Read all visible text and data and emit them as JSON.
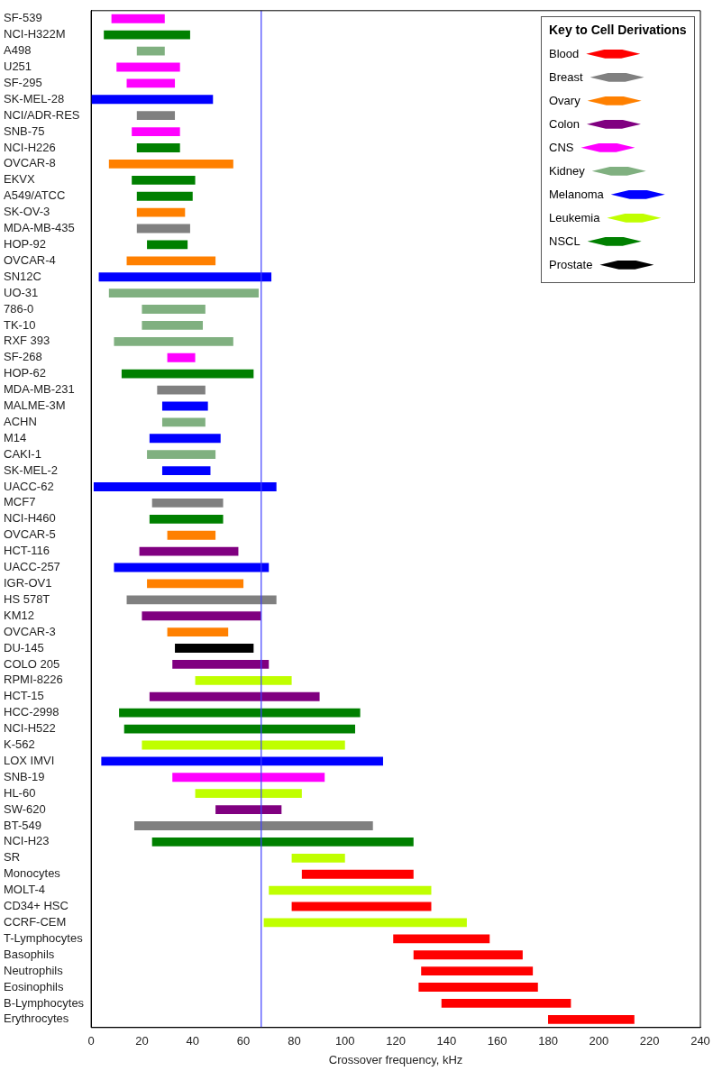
{
  "chart_data": {
    "type": "bar",
    "orientation": "horizontal",
    "xlabel": "Crossover frequency, kHz",
    "legend_title": "Key to Cell Derivations",
    "legend": "top right",
    "grid": false,
    "categories": [
      "SF-539",
      "NCI-H322M",
      "A498",
      "U251",
      "SF-295",
      "SK-MEL-28",
      "NCI/ADR-RES",
      "SNB-75",
      "NCI-H226",
      "OVCAR-8",
      "EKVX",
      "A549/ATCC",
      "SK-OV-3",
      "MDA-MB-435",
      "HOP-92",
      "OVCAR-4",
      "SN12C",
      "UO-31",
      "786-0",
      "TK-10",
      "RXF 393",
      "SF-268",
      "HOP-62",
      "MDA-MB-231",
      "MALME-3M",
      "ACHN",
      "M14",
      "CAKI-1",
      "SK-MEL-2",
      "UACC-62",
      "MCF7",
      "NCI-H460",
      "OVCAR-5",
      "HCT-116",
      "UACC-257",
      "IGR-OV1",
      "HS 578T",
      "KM12",
      "OVCAR-3",
      "DU-145",
      "COLO 205",
      "RPMI-8226",
      "HCT-15",
      "HCC-2998",
      "NCI-H522",
      "K-562",
      "LOX IMVI",
      "SNB-19",
      "HL-60",
      "SW-620",
      "BT-549",
      "NCI-H23",
      "SR",
      "Monocytes",
      "MOLT-4",
      "CD34+ HSC",
      "CCRF-CEM",
      "T-Lymphocytes",
      "Basophils",
      "Neutrophils",
      "Eosinophils",
      "B-Lymphocytes",
      "Erythrocytes"
    ],
    "xlim": [
      0,
      240
    ],
    "xticks": [
      0,
      20,
      40,
      60,
      80,
      100,
      120,
      140,
      160,
      180,
      200,
      220,
      240
    ],
    "ref_lines": [
      {
        "axis": "x",
        "value": 67,
        "color": "#4040ff"
      }
    ],
    "series": [
      {
        "name": "Blood",
        "color": "#ff0000",
        "values": [
          null,
          null,
          null,
          null,
          null,
          null,
          null,
          null,
          null,
          null,
          null,
          null,
          null,
          null,
          null,
          null,
          null,
          null,
          null,
          null,
          null,
          null,
          null,
          null,
          null,
          null,
          null,
          null,
          null,
          null,
          null,
          null,
          null,
          null,
          null,
          null,
          null,
          null,
          null,
          null,
          null,
          null,
          null,
          null,
          null,
          null,
          null,
          null,
          null,
          null,
          null,
          null,
          null,
          44,
          null,
          55,
          null,
          38,
          43,
          44,
          47,
          51,
          34
        ],
        "base": [
          null,
          null,
          null,
          null,
          null,
          null,
          null,
          null,
          null,
          null,
          null,
          null,
          null,
          null,
          null,
          null,
          null,
          null,
          null,
          null,
          null,
          null,
          null,
          null,
          null,
          null,
          null,
          null,
          null,
          null,
          null,
          null,
          null,
          null,
          null,
          null,
          null,
          null,
          null,
          null,
          null,
          null,
          null,
          null,
          null,
          null,
          null,
          null,
          null,
          null,
          null,
          null,
          null,
          83,
          null,
          79,
          null,
          119,
          127,
          130,
          129,
          138,
          180
        ]
      },
      {
        "name": "Breast",
        "color": "#808080",
        "values": [
          null,
          null,
          null,
          null,
          null,
          null,
          15,
          null,
          null,
          null,
          null,
          null,
          null,
          21,
          null,
          null,
          null,
          null,
          null,
          null,
          null,
          null,
          null,
          19,
          null,
          null,
          null,
          null,
          null,
          null,
          28,
          null,
          null,
          null,
          null,
          null,
          59,
          null,
          null,
          null,
          null,
          null,
          null,
          null,
          null,
          null,
          null,
          null,
          null,
          null,
          94,
          null,
          null,
          null,
          null,
          null,
          null,
          null,
          null,
          null,
          null,
          null,
          null
        ],
        "base": [
          null,
          null,
          null,
          null,
          null,
          null,
          18,
          null,
          null,
          null,
          null,
          null,
          null,
          18,
          null,
          null,
          null,
          null,
          null,
          null,
          null,
          null,
          null,
          26,
          null,
          null,
          null,
          null,
          null,
          null,
          24,
          null,
          null,
          null,
          null,
          null,
          14,
          null,
          null,
          null,
          null,
          null,
          null,
          null,
          null,
          null,
          null,
          null,
          null,
          null,
          17,
          null,
          null,
          null,
          null,
          null,
          null,
          null,
          null,
          null,
          null,
          null,
          null
        ]
      },
      {
        "name": "Ovary",
        "color": "#ff8000",
        "values": [
          null,
          null,
          null,
          null,
          null,
          null,
          null,
          null,
          null,
          49,
          null,
          null,
          19,
          null,
          null,
          35,
          null,
          null,
          null,
          null,
          null,
          null,
          null,
          null,
          null,
          null,
          null,
          null,
          null,
          null,
          null,
          null,
          19,
          null,
          null,
          38,
          null,
          null,
          24,
          null,
          null,
          null,
          null,
          null,
          null,
          null,
          null,
          null,
          null,
          null,
          null,
          null,
          null,
          null,
          null,
          null,
          null,
          null,
          null,
          null,
          null,
          null,
          null
        ],
        "base": [
          null,
          null,
          null,
          null,
          null,
          null,
          null,
          null,
          null,
          7,
          null,
          null,
          18,
          null,
          null,
          14,
          null,
          null,
          null,
          null,
          null,
          null,
          null,
          null,
          null,
          null,
          null,
          null,
          null,
          null,
          null,
          null,
          30,
          null,
          null,
          22,
          null,
          null,
          30,
          null,
          null,
          null,
          null,
          null,
          null,
          null,
          null,
          null,
          null,
          null,
          null,
          null,
          null,
          null,
          null,
          null,
          null,
          null,
          null,
          null,
          null,
          null,
          null
        ]
      },
      {
        "name": "Colon",
        "color": "#800080",
        "values": [
          null,
          null,
          null,
          null,
          null,
          null,
          null,
          null,
          null,
          null,
          null,
          null,
          null,
          null,
          null,
          null,
          null,
          null,
          null,
          null,
          null,
          null,
          null,
          null,
          null,
          null,
          null,
          null,
          null,
          null,
          null,
          null,
          null,
          39,
          null,
          null,
          null,
          47,
          null,
          null,
          38,
          null,
          67,
          null,
          null,
          null,
          null,
          null,
          null,
          26,
          null,
          null,
          null,
          null,
          null,
          null,
          null,
          null,
          null,
          null,
          null,
          null,
          null
        ],
        "base": [
          null,
          null,
          null,
          null,
          null,
          null,
          null,
          null,
          null,
          null,
          null,
          null,
          null,
          null,
          null,
          null,
          null,
          null,
          null,
          null,
          null,
          null,
          null,
          null,
          null,
          null,
          null,
          null,
          null,
          null,
          null,
          null,
          null,
          19,
          null,
          null,
          null,
          20,
          null,
          null,
          32,
          null,
          23,
          null,
          null,
          null,
          null,
          null,
          null,
          49,
          null,
          null,
          null,
          null,
          null,
          null,
          null,
          null,
          null,
          null,
          null,
          null,
          null
        ]
      },
      {
        "name": "CNS",
        "color": "#ff00ff",
        "values": [
          21,
          null,
          null,
          25,
          19,
          null,
          null,
          19,
          null,
          null,
          null,
          null,
          null,
          null,
          null,
          null,
          null,
          null,
          null,
          null,
          null,
          11,
          null,
          null,
          null,
          null,
          null,
          null,
          null,
          null,
          null,
          null,
          null,
          null,
          null,
          null,
          null,
          null,
          null,
          null,
          null,
          null,
          null,
          null,
          null,
          null,
          null,
          60,
          null,
          null,
          null,
          null,
          null,
          null,
          null,
          null,
          null,
          null,
          null,
          null,
          null,
          null,
          null
        ],
        "base": [
          8,
          null,
          null,
          10,
          14,
          null,
          null,
          16,
          null,
          null,
          null,
          null,
          null,
          null,
          null,
          null,
          null,
          null,
          null,
          null,
          null,
          30,
          null,
          null,
          null,
          null,
          null,
          null,
          null,
          null,
          null,
          null,
          null,
          null,
          null,
          null,
          null,
          null,
          null,
          null,
          null,
          null,
          null,
          null,
          null,
          null,
          null,
          32,
          null,
          null,
          null,
          null,
          null,
          null,
          null,
          null,
          null,
          null,
          null,
          null,
          null,
          null,
          null
        ]
      },
      {
        "name": "Kidney",
        "color": "#80b080",
        "values": [
          null,
          null,
          11,
          null,
          null,
          null,
          null,
          null,
          null,
          null,
          null,
          null,
          null,
          null,
          null,
          null,
          null,
          59,
          25,
          24,
          47,
          null,
          null,
          null,
          null,
          17,
          null,
          27,
          null,
          null,
          null,
          null,
          null,
          null,
          null,
          null,
          null,
          null,
          null,
          null,
          null,
          null,
          null,
          null,
          null,
          null,
          null,
          null,
          null,
          null,
          null,
          null,
          null,
          null,
          null,
          null,
          null,
          null,
          null,
          null,
          null,
          null,
          null
        ],
        "base": [
          null,
          null,
          18,
          null,
          null,
          null,
          null,
          null,
          null,
          null,
          null,
          null,
          null,
          null,
          null,
          null,
          null,
          7,
          20,
          20,
          9,
          null,
          null,
          null,
          null,
          28,
          null,
          22,
          null,
          null,
          null,
          null,
          null,
          null,
          null,
          null,
          null,
          null,
          null,
          null,
          null,
          null,
          null,
          null,
          null,
          null,
          null,
          null,
          null,
          null,
          null,
          null,
          null,
          null,
          null,
          null,
          null,
          null,
          null,
          null,
          null,
          null,
          null
        ]
      },
      {
        "name": "Melanoma",
        "color": "#0000ff",
        "values": [
          null,
          null,
          null,
          null,
          null,
          48,
          null,
          null,
          null,
          null,
          null,
          null,
          null,
          null,
          null,
          null,
          68,
          null,
          null,
          null,
          null,
          null,
          null,
          null,
          18,
          null,
          28,
          null,
          19,
          72,
          null,
          null,
          null,
          null,
          61,
          null,
          null,
          null,
          null,
          null,
          null,
          null,
          null,
          null,
          null,
          null,
          111,
          null,
          null,
          null,
          null,
          null,
          null,
          null,
          null,
          null,
          null,
          null,
          null,
          null,
          null,
          null,
          null
        ],
        "base": [
          null,
          null,
          null,
          null,
          null,
          0,
          null,
          null,
          null,
          null,
          null,
          null,
          null,
          null,
          null,
          null,
          3,
          null,
          null,
          null,
          null,
          null,
          null,
          null,
          28,
          null,
          23,
          null,
          28,
          1,
          null,
          null,
          null,
          null,
          9,
          null,
          null,
          null,
          null,
          null,
          null,
          null,
          null,
          null,
          null,
          null,
          4,
          null,
          null,
          null,
          null,
          null,
          null,
          null,
          null,
          null,
          null,
          null,
          null,
          null,
          null,
          null,
          null
        ]
      },
      {
        "name": "Leukemia",
        "color": "#c0ff00",
        "values": [
          null,
          null,
          null,
          null,
          null,
          null,
          null,
          null,
          null,
          null,
          null,
          null,
          null,
          null,
          null,
          null,
          null,
          null,
          null,
          null,
          null,
          null,
          null,
          null,
          null,
          null,
          null,
          null,
          null,
          null,
          null,
          null,
          null,
          null,
          null,
          null,
          null,
          null,
          null,
          null,
          null,
          38,
          null,
          null,
          null,
          80,
          null,
          null,
          42,
          null,
          null,
          null,
          21,
          null,
          64,
          null,
          80,
          null,
          null,
          null,
          null,
          null,
          null
        ],
        "base": [
          null,
          null,
          null,
          null,
          null,
          null,
          null,
          null,
          null,
          null,
          null,
          null,
          null,
          null,
          null,
          null,
          null,
          null,
          null,
          null,
          null,
          null,
          null,
          null,
          null,
          null,
          null,
          null,
          null,
          null,
          null,
          null,
          null,
          null,
          null,
          null,
          null,
          null,
          null,
          null,
          null,
          41,
          null,
          null,
          null,
          20,
          null,
          null,
          41,
          null,
          null,
          null,
          79,
          null,
          70,
          null,
          68,
          null,
          null,
          null,
          null,
          null,
          null
        ]
      },
      {
        "name": "NSCL",
        "color": "#008000",
        "values": [
          null,
          34,
          null,
          null,
          null,
          null,
          null,
          null,
          17,
          null,
          25,
          22,
          null,
          null,
          16,
          null,
          null,
          null,
          null,
          null,
          null,
          null,
          52,
          null,
          null,
          null,
          null,
          null,
          null,
          null,
          null,
          29,
          null,
          null,
          null,
          null,
          null,
          null,
          null,
          null,
          null,
          null,
          null,
          95,
          91,
          null,
          null,
          null,
          null,
          null,
          null,
          103,
          null,
          null,
          null,
          null,
          null,
          null,
          null,
          null,
          null,
          null,
          null
        ],
        "base": [
          null,
          5,
          null,
          null,
          null,
          null,
          null,
          null,
          18,
          null,
          16,
          18,
          null,
          null,
          22,
          null,
          null,
          null,
          null,
          null,
          null,
          null,
          12,
          null,
          null,
          null,
          null,
          null,
          null,
          null,
          null,
          23,
          null,
          null,
          null,
          null,
          null,
          null,
          null,
          null,
          null,
          null,
          null,
          11,
          13,
          null,
          null,
          null,
          null,
          null,
          null,
          24,
          null,
          null,
          null,
          null,
          null,
          null,
          null,
          null,
          null,
          null,
          null
        ]
      },
      {
        "name": "Prostate",
        "color": "#000000",
        "values": [
          null,
          null,
          null,
          null,
          null,
          null,
          null,
          null,
          null,
          null,
          null,
          null,
          null,
          null,
          null,
          null,
          null,
          null,
          null,
          null,
          null,
          null,
          null,
          null,
          null,
          null,
          null,
          null,
          null,
          null,
          null,
          null,
          null,
          null,
          null,
          null,
          null,
          null,
          null,
          31,
          null,
          null,
          null,
          null,
          null,
          null,
          null,
          null,
          null,
          null,
          null,
          null,
          null,
          null,
          null,
          null,
          null,
          null,
          null,
          null,
          null,
          null,
          null
        ],
        "base": [
          null,
          null,
          null,
          null,
          null,
          null,
          null,
          null,
          null,
          null,
          null,
          null,
          null,
          null,
          null,
          null,
          null,
          null,
          null,
          null,
          null,
          null,
          null,
          null,
          null,
          null,
          null,
          null,
          null,
          null,
          null,
          null,
          null,
          null,
          null,
          null,
          null,
          null,
          null,
          33,
          null,
          null,
          null,
          null,
          null,
          null,
          null,
          null,
          null,
          null,
          null,
          null,
          null,
          null,
          null,
          null,
          null,
          null,
          null,
          null,
          null,
          null,
          null
        ]
      }
    ]
  }
}
